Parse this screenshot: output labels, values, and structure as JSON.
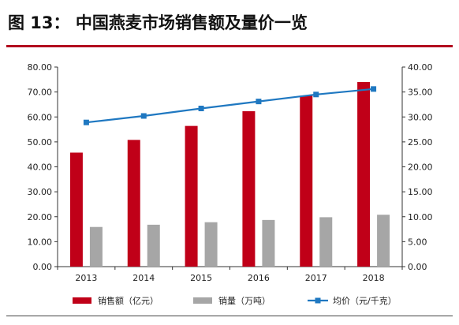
{
  "figure_title": "图 13： 中国燕麦市场销售额及量价一览",
  "chart_data": {
    "type": "bar",
    "categories": [
      "2013",
      "2014",
      "2015",
      "2016",
      "2017",
      "2018"
    ],
    "series": [
      {
        "name": "销售额（亿元）",
        "kind": "bar",
        "axis": "left",
        "color": "#c00018",
        "values": [
          45.7,
          50.8,
          56.4,
          62.3,
          68.5,
          74.0
        ]
      },
      {
        "name": "销量（万吨）",
        "kind": "bar",
        "axis": "left",
        "color": "#a6a6a6",
        "values": [
          15.9,
          16.8,
          17.8,
          18.7,
          19.8,
          20.8
        ]
      },
      {
        "name": "均价（元/千克）",
        "kind": "line",
        "axis": "right",
        "color": "#1f78c1",
        "values": [
          28.9,
          30.2,
          31.7,
          33.1,
          34.5,
          35.6
        ]
      }
    ],
    "y_left": {
      "ylim": [
        0,
        80
      ],
      "ticks": [
        "0.00",
        "10.00",
        "20.00",
        "30.00",
        "40.00",
        "50.00",
        "60.00",
        "70.00",
        "80.00"
      ]
    },
    "y_right": {
      "ylim": [
        0,
        40
      ],
      "ticks": [
        "0.00",
        "5.00",
        "10.00",
        "15.00",
        "20.00",
        "25.00",
        "30.00",
        "35.00",
        "40.00"
      ]
    },
    "legend_position": "bottom",
    "grid": false
  }
}
